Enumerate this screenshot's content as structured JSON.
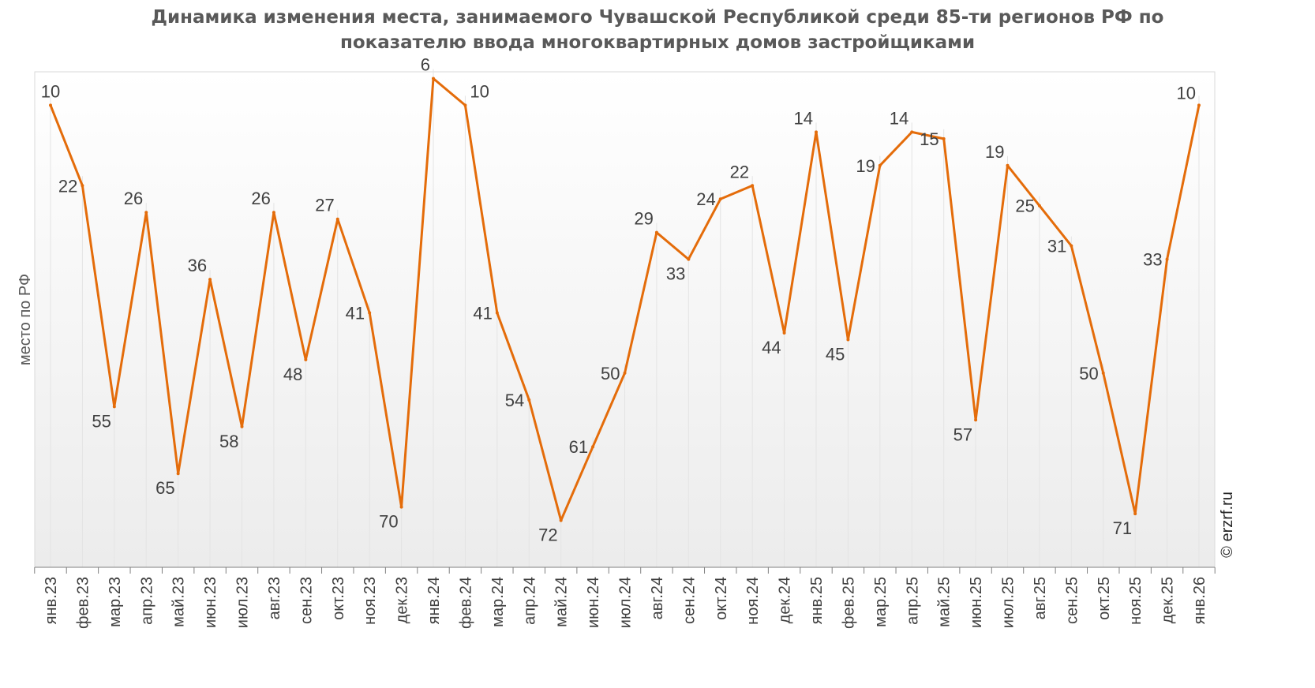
{
  "chart_data": {
    "type": "line",
    "title_line1": "Динамика изменения места, занимаемого Чувашской Республикой среди 85-ти регионов РФ по",
    "title_line2": "показателю ввода многоквартирных домов застройщиками",
    "ylabel": "место по РФ",
    "y_reversed": true,
    "ylim": [
      5,
      79
    ],
    "grid": "vertical",
    "legend": "none",
    "series_color": "#E46C0A",
    "categories": [
      "янв.23",
      "фев.23",
      "мар.23",
      "апр.23",
      "май.23",
      "июн.23",
      "июл.23",
      "авг.23",
      "сен.23",
      "окт.23",
      "ноя.23",
      "дек.23",
      "янв.24",
      "фев.24",
      "мар.24",
      "апр.24",
      "май.24",
      "июн.24",
      "июл.24",
      "авг.24",
      "сен.24",
      "окт.24",
      "ноя.24",
      "дек.24",
      "янв.25",
      "фев.25",
      "мар.25",
      "апр.25",
      "май.25",
      "июн.25",
      "июл.25",
      "авг.25",
      "сен.25",
      "окт.25",
      "ноя.25",
      "дек.25",
      "янв.26"
    ],
    "values": [
      10,
      22,
      55,
      26,
      65,
      36,
      58,
      26,
      48,
      27,
      41,
      70,
      6,
      10,
      41,
      54,
      72,
      61,
      50,
      29,
      33,
      24,
      22,
      44,
      14,
      45,
      19,
      14,
      15,
      57,
      19,
      25,
      31,
      50,
      71,
      33,
      10
    ],
    "watermark": "© erzrf.ru"
  }
}
